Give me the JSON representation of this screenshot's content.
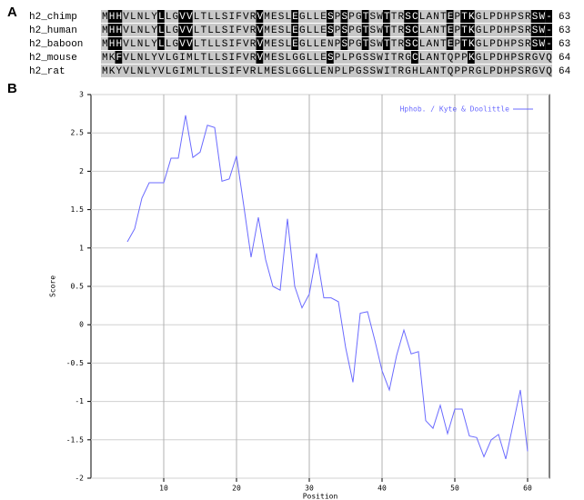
{
  "alignment": {
    "label": "A",
    "rows": [
      {
        "name": "h2_chimp",
        "sequence": "MHHVLNLYLLGVVLTLLSIFVRVMESLEGLLESPSPGTSWTTRSCLANTEPTKGLPDHPSRSW-",
        "length": 63
      },
      {
        "name": "h2_human",
        "sequence": "MHHVLNLYLLGVVLTLLSIFVRVMESLEGLLESPSPGTSWTTRSCLANTEPTKGLPDHPSRSW-",
        "length": 63
      },
      {
        "name": "h2_baboon",
        "sequence": "MHHVLNLYLLGVVLTLLSIFVRVMESLEGLLENPSPGTSWTTRSCLANTEPTKGLPDHPSRSW-",
        "length": 63
      },
      {
        "name": "h2_mouse",
        "sequence": "MKFVLNLYVLGIMLTLLSIFVRVMESLGGLLESPLPGSSWITRGCLANTQPPKGLPDHPSRGVQ",
        "length": 64
      },
      {
        "name": "h2_rat",
        "sequence": "MKYVLNLYVLGIMLTLLSIFVRLMESLGGLLENPLPGSSWITRGHLANTQPPRGLPDHPSRGVQ",
        "length": 64
      }
    ]
  },
  "chart_data": {
    "panel_label": "B",
    "type": "line",
    "x": [
      5,
      6,
      7,
      8,
      9,
      10,
      11,
      12,
      13,
      14,
      15,
      16,
      17,
      18,
      19,
      20,
      21,
      22,
      23,
      24,
      25,
      26,
      27,
      28,
      29,
      30,
      31,
      32,
      33,
      34,
      35,
      36,
      37,
      38,
      39,
      40,
      41,
      42,
      43,
      44,
      45,
      46,
      47,
      48,
      49,
      50,
      51,
      52,
      53,
      54,
      55,
      56,
      57,
      58,
      59,
      60
    ],
    "series": [
      {
        "name": "Hphob. / Kyte & Doolittle",
        "color": "#6b6bff",
        "values": [
          1.08,
          1.25,
          1.65,
          1.85,
          1.85,
          1.85,
          2.17,
          2.17,
          2.73,
          2.18,
          2.25,
          2.6,
          2.57,
          1.87,
          1.9,
          2.2,
          1.55,
          0.88,
          1.4,
          0.85,
          0.5,
          0.45,
          1.38,
          0.5,
          0.22,
          0.4,
          0.93,
          0.35,
          0.35,
          0.3,
          -0.3,
          -0.75,
          0.15,
          0.17,
          -0.2,
          -0.6,
          -0.85,
          -0.4,
          -0.07,
          -0.38,
          -0.35,
          -1.25,
          -1.35,
          -1.05,
          -1.42,
          -1.1,
          -1.1,
          -1.45,
          -1.47,
          -1.72,
          -1.5,
          -1.43,
          -1.75,
          -1.3,
          -0.85,
          -1.65
        ]
      }
    ],
    "xlim": [
      0,
      63
    ],
    "ylim": [
      -2,
      3
    ],
    "xticks": [
      10,
      20,
      30,
      40,
      50,
      60
    ],
    "yticks": [
      -2,
      -1.5,
      -1,
      -0.5,
      0,
      0.5,
      1,
      1.5,
      2,
      2.5,
      3
    ],
    "xlabel": "Position",
    "ylabel": "Score",
    "grid": true,
    "legend": "upper right"
  }
}
